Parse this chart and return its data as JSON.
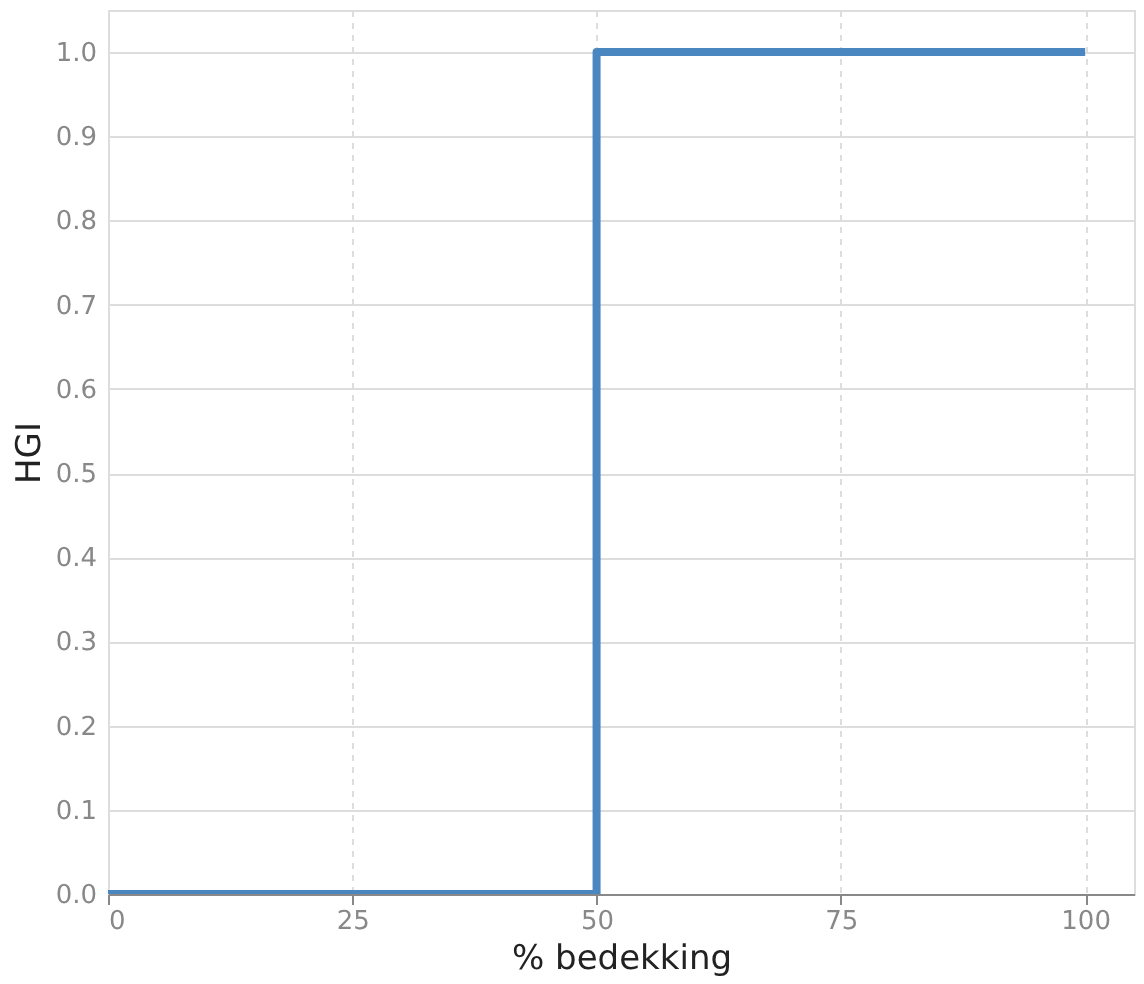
{
  "chart_data": {
    "type": "step",
    "xlabel": "% bedekking",
    "ylabel": "HGI",
    "x": [
      0,
      50,
      100
    ],
    "series": [
      {
        "color": "#4a86c0",
        "values": [
          0,
          1,
          1
        ]
      }
    ],
    "xlim": [
      0,
      105
    ],
    "ylim": [
      0,
      1.05
    ],
    "xticks": [
      0,
      25,
      50,
      75,
      100
    ],
    "yticks": [
      {
        "value": 0,
        "label": "0.0"
      },
      {
        "value": 0.1,
        "label": "0.1"
      },
      {
        "value": 0.2,
        "label": "0.2"
      },
      {
        "value": 0.3,
        "label": "0.3"
      },
      {
        "value": 0.4,
        "label": "0.4"
      },
      {
        "value": 0.5,
        "label": "0.5"
      },
      {
        "value": 0.6,
        "label": "0.6"
      },
      {
        "value": 0.7,
        "label": "0.7"
      },
      {
        "value": 0.8,
        "label": "0.8"
      },
      {
        "value": 0.9,
        "label": "0.9"
      },
      {
        "value": 1,
        "label": "1.0"
      }
    ],
    "grid": true
  }
}
